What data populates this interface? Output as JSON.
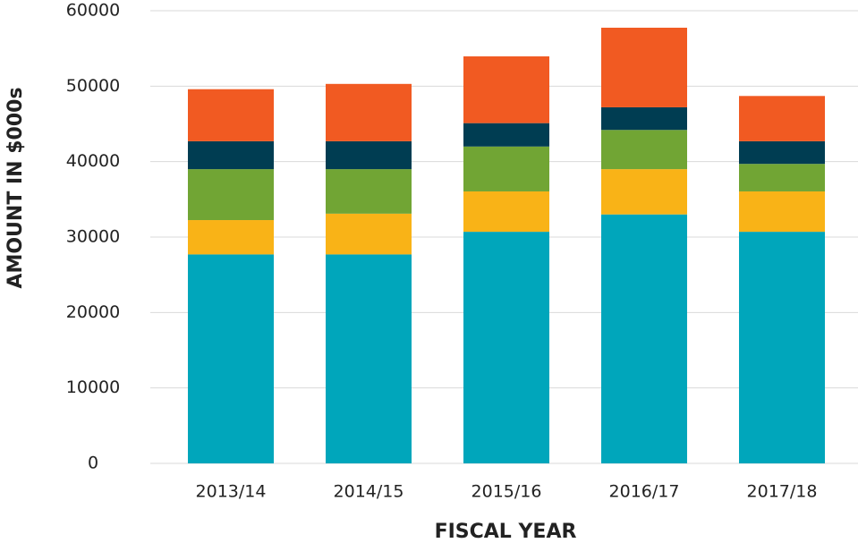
{
  "chart_data": {
    "type": "stacked_bar",
    "xlabel": "FISCAL YEAR",
    "ylabel": "AMOUNT IN $000s",
    "categories": [
      "2013/14",
      "2014/15",
      "2015/16",
      "2016/17",
      "2017/18"
    ],
    "series": [
      {
        "color": "#00a6bb",
        "values": [
          27700,
          27700,
          30700,
          33000,
          30700
        ]
      },
      {
        "color": "#f9b317",
        "values": [
          4550,
          5400,
          5350,
          6000,
          5350
        ]
      },
      {
        "color": "#71a534",
        "values": [
          6750,
          5900,
          5950,
          5200,
          3650
        ]
      },
      {
        "color": "#003d52",
        "values": [
          3700,
          3700,
          3100,
          3000,
          3000
        ]
      },
      {
        "color": "#f15a22",
        "values": [
          6900,
          7600,
          8850,
          10550,
          6000
        ]
      }
    ],
    "ylim": [
      0,
      60000
    ],
    "yticks": [
      0,
      10000,
      20000,
      30000,
      40000,
      50000,
      60000
    ],
    "grid": true
  }
}
